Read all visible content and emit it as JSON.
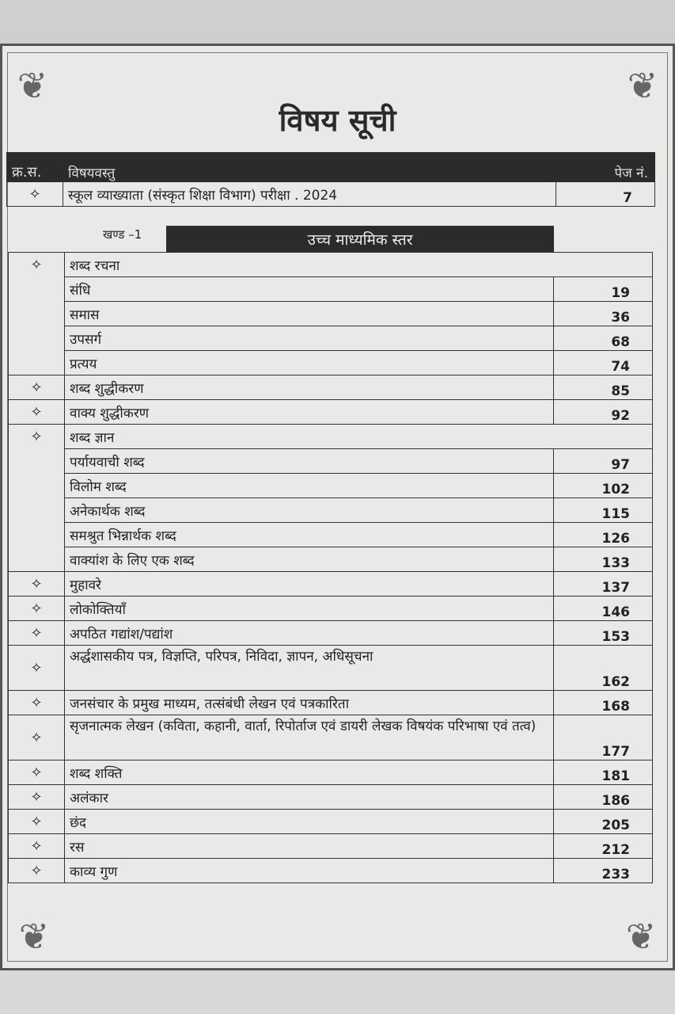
{
  "title": "विषय सूची",
  "header": {
    "serial": "क्र.स.",
    "content": "विषयवस्तु",
    "page": "पेज नं."
  },
  "intro_row": {
    "marker": "✧",
    "title": "स्कूल व्याख्याता (संस्कृत शिक्षा विभाग) परीक्षा . 2024",
    "page": "7"
  },
  "section": {
    "label": "खण्ड –1",
    "title": "उच्च माध्यमिक स्तर"
  },
  "rows": [
    {
      "marker": "✧",
      "title": "शब्द रचना",
      "page": "",
      "type": "group"
    },
    {
      "marker": "",
      "title": "संधि",
      "page": "19",
      "type": "sub"
    },
    {
      "marker": "",
      "title": "समास",
      "page": "36",
      "type": "sub"
    },
    {
      "marker": "",
      "title": "उपसर्ग",
      "page": "68",
      "type": "sub"
    },
    {
      "marker": "",
      "title": "प्रत्यय",
      "page": "74",
      "type": "sub"
    },
    {
      "marker": "✧",
      "title": "शब्द शुद्धीकरण",
      "page": "85",
      "type": "item"
    },
    {
      "marker": "✧",
      "title": "वाक्य शुद्धीकरण",
      "page": "92",
      "type": "item"
    },
    {
      "marker": "✧",
      "title": "शब्द ज्ञान",
      "page": "",
      "type": "group"
    },
    {
      "marker": "",
      "title": "पर्यायवाची शब्द",
      "page": "97",
      "type": "sub"
    },
    {
      "marker": "",
      "title": "विलोम शब्द",
      "page": "102",
      "type": "sub"
    },
    {
      "marker": "",
      "title": "अनेकार्थक शब्द",
      "page": "115",
      "type": "sub"
    },
    {
      "marker": "",
      "title": "समश्रुत भिन्नार्थक शब्द",
      "page": "126",
      "type": "sub"
    },
    {
      "marker": "",
      "title": "वाक्यांश के लिए एक शब्द",
      "page": "133",
      "type": "sub"
    },
    {
      "marker": "✧",
      "title": "मुहावरे",
      "page": "137",
      "type": "item"
    },
    {
      "marker": "✧",
      "title": "लोकोक्तियाँ",
      "page": "146",
      "type": "item"
    },
    {
      "marker": "✧",
      "title": "अपठित गद्यांश/पद्यांश",
      "page": "153",
      "type": "item"
    },
    {
      "marker": "✧",
      "title": "अर्द्धशासकीय पत्र, विज्ञप्ति, परिपत्र, निविदा, ज्ञापन, अधिसूचना",
      "page": "162",
      "type": "item"
    },
    {
      "marker": "✧",
      "title": "जनसंचार के प्रमुख माध्यम, तत्संबंधी लेखन एवं पत्रकारिता",
      "page": "168",
      "type": "item"
    },
    {
      "marker": "✧",
      "title": "सृजनात्मक लेखन (कविता, कहानी, वार्ता, रिपोर्ताज एवं डायरी लेखक विषयंक परिभाषा एवं तत्व)",
      "page": "177",
      "type": "item"
    },
    {
      "marker": "✧",
      "title": "शब्द शक्ति",
      "page": "181",
      "type": "item"
    },
    {
      "marker": "✧",
      "title": "अलंकार",
      "page": "186",
      "type": "item"
    },
    {
      "marker": "✧",
      "title": "छंद",
      "page": "205",
      "type": "item"
    },
    {
      "marker": "✧",
      "title": "रस",
      "page": "212",
      "type": "item"
    },
    {
      "marker": "✧",
      "title": "काव्य गुण",
      "page": "233",
      "type": "item"
    }
  ]
}
